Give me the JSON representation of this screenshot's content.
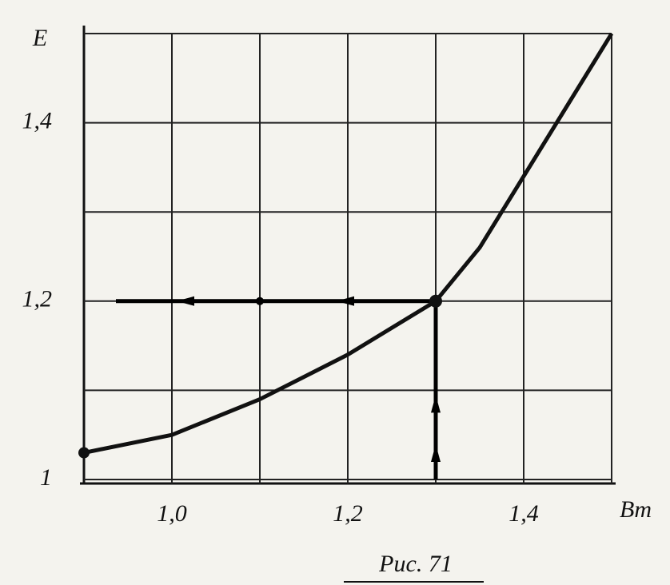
{
  "chart_data": {
    "type": "line",
    "title": "Рис. 71",
    "x_label": "Bm",
    "y_label": "E",
    "x": [
      0.9,
      1.0,
      1.1,
      1.2,
      1.3,
      1.35,
      1.4,
      1.45,
      1.5
    ],
    "series": [
      {
        "name": "E",
        "color": "#111111",
        "values": [
          1.03,
          1.05,
          1.09,
          1.14,
          1.2,
          1.26,
          1.34,
          1.42,
          1.5
        ]
      }
    ],
    "xlim": [
      0.9,
      1.5
    ],
    "ylim": [
      1,
      1.5
    ],
    "xticks": [
      {
        "value": 1.0,
        "label": "1,0"
      },
      {
        "value": 1.2,
        "label": "1,2"
      },
      {
        "value": 1.4,
        "label": "1,4"
      }
    ],
    "yticks": [
      1,
      {
        "value": 1.2,
        "label": "1,2"
      },
      {
        "value": 1.4,
        "label": "1,4"
      }
    ],
    "x_grid": [
      1.1,
      1.3,
      1.5
    ],
    "y_grid": [
      1.1,
      1.3,
      1.5
    ],
    "guide": {
      "x": 1.3,
      "y": 1.2
    },
    "grid": true
  }
}
